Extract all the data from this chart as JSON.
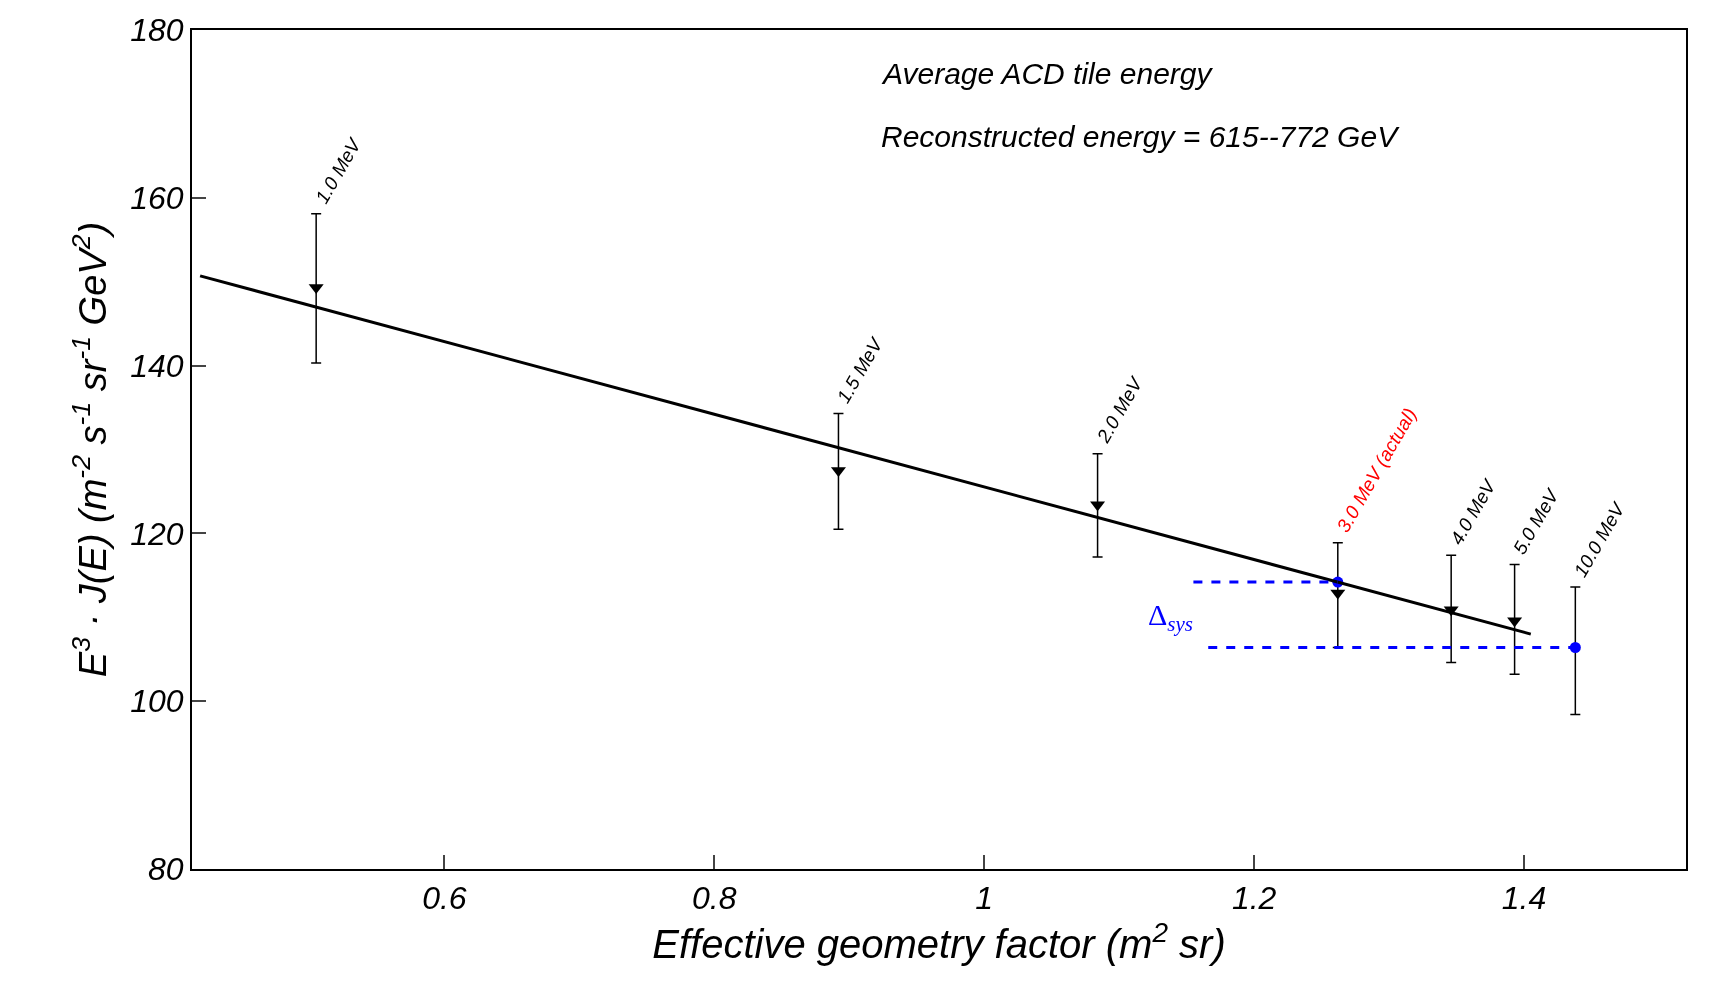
{
  "chart_data": {
    "type": "scatter",
    "xlabel": "Effective geometry factor (m$^{2}$ sr)",
    "ylabel": "E$^{3}$ · J(E) (m$^{-2}$ s$^{-1}$ sr$^{-1}$ GeV$^{2}$)",
    "xlim": [
      0.413,
      1.52
    ],
    "xticks": [
      0.6,
      0.8,
      {
        "value": 1.0,
        "label": "1"
      },
      1.2,
      1.4
    ],
    "ylim": [
      80,
      180
    ],
    "yticks": [
      80,
      100,
      120,
      140,
      160,
      180
    ],
    "series": [
      {
        "marker": "triangle",
        "color": "#000000",
        "x": [
          0.505,
          0.892,
          1.084,
          1.262,
          1.346,
          1.393
        ],
        "values": [
          149.3,
          127.5,
          123.4,
          112.9,
          110.9,
          109.6
        ],
        "errors": [
          [
            140.3,
            158.1
          ],
          [
            120.5,
            134.3
          ],
          [
            117.2,
            129.5
          ],
          [
            106.4,
            118.9
          ],
          [
            104.6,
            117.4
          ],
          [
            103.2,
            116.3
          ]
        ]
      },
      {
        "marker": "circle",
        "color": "#0000ff",
        "x": [
          1.262,
          1.438
        ],
        "values": [
          114.2,
          106.4
        ],
        "errors": [
          null,
          [
            98.4,
            113.6
          ]
        ]
      },
      {
        "type": "line",
        "marker": "none",
        "line_style": "solid",
        "color": "#000000",
        "x": [
          0.419,
          1.405
        ],
        "values": [
          150.7,
          108.0
        ]
      },
      {
        "type": "line",
        "marker": "none",
        "line_style": "dashed",
        "color": "#0000ff",
        "x": [
          1.155,
          1.262
        ],
        "values": [
          114.2,
          114.2
        ]
      },
      {
        "type": "line",
        "marker": "none",
        "line_style": "dashed",
        "color": "#0000ff",
        "x": [
          1.166,
          1.438
        ],
        "values": [
          106.4,
          106.4
        ]
      }
    ],
    "annotations": [
      {
        "text": "1.0 MeV",
        "x": 0.505,
        "y": 158.1
      },
      {
        "text": "1.5 MeV",
        "x": 0.892,
        "y": 134.3
      },
      {
        "text": "2.0 MeV",
        "x": 1.084,
        "y": 129.5
      },
      {
        "text": "3.0 MeV (actual)",
        "x": 1.262,
        "y": 118.9
      },
      {
        "text": "4.0 MeV",
        "x": 1.346,
        "y": 117.4
      },
      {
        "text": "5.0 MeV",
        "x": 1.393,
        "y": 116.3
      },
      {
        "text": "10.0 MeV",
        "x": 1.438,
        "y": 113.6
      },
      "Average ACD tile energy",
      "Reconstructed energy = 615--772 GeV",
      "Δ$_{sys}$"
    ]
  }
}
